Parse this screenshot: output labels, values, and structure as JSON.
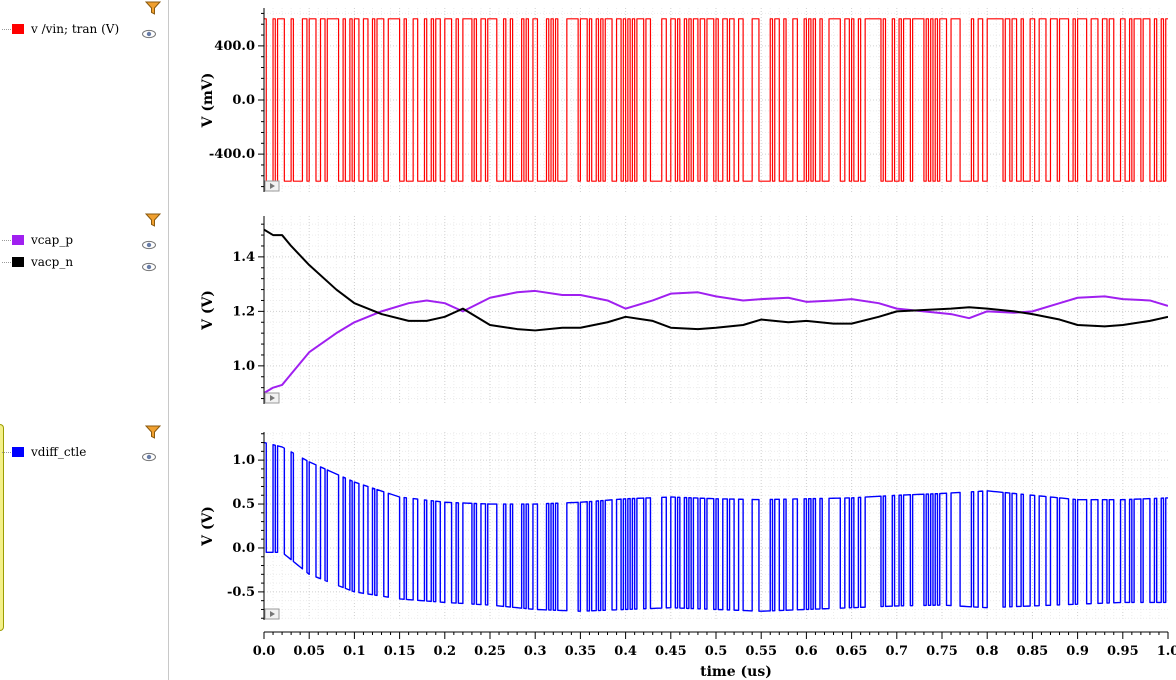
{
  "xaxis": {
    "label": "time (us)",
    "range": [
      0.0,
      1.0
    ],
    "ticks": [
      "0.0",
      "0.05",
      "0.1",
      "0.15",
      "0.2",
      "0.25",
      "0.3",
      "0.35",
      "0.4",
      "0.45",
      "0.5",
      "0.55",
      "0.6",
      "0.65",
      "0.7",
      "0.75",
      "0.8",
      "0.85",
      "0.9",
      "0.95",
      "1.0"
    ]
  },
  "legend": {
    "strips": [
      {
        "items": [
          {
            "label": "v /vin; tran (V)",
            "color": "#ff0000"
          }
        ]
      },
      {
        "items": [
          {
            "label": "vcap_p",
            "color": "#a020f0"
          },
          {
            "label": "vacp_n",
            "color": "#000000"
          }
        ]
      },
      {
        "items": [
          {
            "label": "vdiff_ctle",
            "color": "#0000ff"
          }
        ]
      }
    ]
  },
  "chart_data": [
    {
      "type": "line",
      "ylabel": "V (mV)",
      "ylim": [
        -680,
        680
      ],
      "yticks": [
        "400.0",
        "0.0",
        "-400.0"
      ],
      "yticks_values": [
        400,
        0,
        -400
      ],
      "grid": true,
      "series": [
        {
          "name": "v /vin; tran (V)",
          "color": "#ff0000",
          "description_levels": [
            -600,
            600
          ],
          "bit_period_us": 0.0025,
          "seed": 7
        }
      ]
    },
    {
      "type": "line",
      "ylabel": "V (V)",
      "ylim": [
        0.86,
        1.55
      ],
      "yticks": [
        "1.4",
        "1.2",
        "1.0"
      ],
      "yticks_values": [
        1.4,
        1.2,
        1.0
      ],
      "grid": true,
      "series": [
        {
          "name": "vcap_p",
          "color": "#a020f0",
          "x": [
            0.0,
            0.01,
            0.02,
            0.03,
            0.05,
            0.08,
            0.1,
            0.13,
            0.16,
            0.18,
            0.2,
            0.22,
            0.25,
            0.28,
            0.3,
            0.33,
            0.35,
            0.38,
            0.4,
            0.43,
            0.45,
            0.48,
            0.5,
            0.53,
            0.55,
            0.58,
            0.6,
            0.63,
            0.65,
            0.68,
            0.7,
            0.73,
            0.76,
            0.78,
            0.8,
            0.83,
            0.85,
            0.88,
            0.9,
            0.93,
            0.95,
            0.98,
            1.0
          ],
          "y": [
            0.9,
            0.92,
            0.93,
            0.97,
            1.05,
            1.12,
            1.16,
            1.2,
            1.23,
            1.24,
            1.23,
            1.2,
            1.25,
            1.27,
            1.275,
            1.26,
            1.26,
            1.24,
            1.21,
            1.24,
            1.265,
            1.27,
            1.255,
            1.24,
            1.245,
            1.25,
            1.235,
            1.24,
            1.245,
            1.23,
            1.21,
            1.2,
            1.19,
            1.175,
            1.2,
            1.195,
            1.2,
            1.23,
            1.25,
            1.255,
            1.245,
            1.24,
            1.22
          ]
        },
        {
          "name": "vacp_n",
          "color": "#000000",
          "x": [
            0.0,
            0.01,
            0.02,
            0.03,
            0.05,
            0.08,
            0.1,
            0.13,
            0.16,
            0.18,
            0.2,
            0.22,
            0.25,
            0.28,
            0.3,
            0.33,
            0.35,
            0.38,
            0.4,
            0.43,
            0.45,
            0.48,
            0.5,
            0.53,
            0.55,
            0.58,
            0.6,
            0.63,
            0.65,
            0.68,
            0.7,
            0.73,
            0.76,
            0.78,
            0.8,
            0.83,
            0.85,
            0.88,
            0.9,
            0.93,
            0.95,
            0.98,
            1.0
          ],
          "y": [
            1.5,
            1.48,
            1.48,
            1.44,
            1.37,
            1.28,
            1.23,
            1.19,
            1.165,
            1.165,
            1.18,
            1.21,
            1.15,
            1.135,
            1.13,
            1.14,
            1.14,
            1.16,
            1.18,
            1.165,
            1.14,
            1.135,
            1.14,
            1.15,
            1.17,
            1.16,
            1.165,
            1.155,
            1.155,
            1.18,
            1.2,
            1.205,
            1.21,
            1.215,
            1.21,
            1.2,
            1.19,
            1.17,
            1.15,
            1.145,
            1.15,
            1.165,
            1.18
          ]
        }
      ]
    },
    {
      "type": "line",
      "ylabel": "V (V)",
      "ylim": [
        -0.82,
        1.32
      ],
      "yticks": [
        "1.0",
        "0.5",
        "0.0",
        "-0.5"
      ],
      "yticks_values": [
        1.0,
        0.5,
        0.0,
        -0.5
      ],
      "grid": true,
      "series": [
        {
          "name": "vdiff_ctle",
          "color": "#0000ff",
          "envelope_x": [
            0.0,
            0.02,
            0.05,
            0.1,
            0.15,
            0.2,
            0.25,
            0.3,
            0.35,
            0.4,
            0.45,
            0.5,
            0.55,
            0.6,
            0.65,
            0.7,
            0.75,
            0.8,
            0.85,
            0.9,
            0.95,
            1.0
          ],
          "envelope_hi": [
            1.2,
            1.15,
            0.98,
            0.75,
            0.58,
            0.52,
            0.5,
            0.5,
            0.52,
            0.56,
            0.58,
            0.56,
            0.55,
            0.56,
            0.57,
            0.6,
            0.62,
            0.65,
            0.6,
            0.55,
            0.55,
            0.57
          ],
          "envelope_lo": [
            -0.05,
            -0.05,
            -0.3,
            -0.5,
            -0.58,
            -0.62,
            -0.65,
            -0.7,
            -0.72,
            -0.7,
            -0.68,
            -0.7,
            -0.72,
            -0.7,
            -0.68,
            -0.66,
            -0.65,
            -0.68,
            -0.66,
            -0.64,
            -0.62,
            -0.62
          ],
          "bit_period_us": 0.0025,
          "seed": 7
        }
      ]
    }
  ]
}
